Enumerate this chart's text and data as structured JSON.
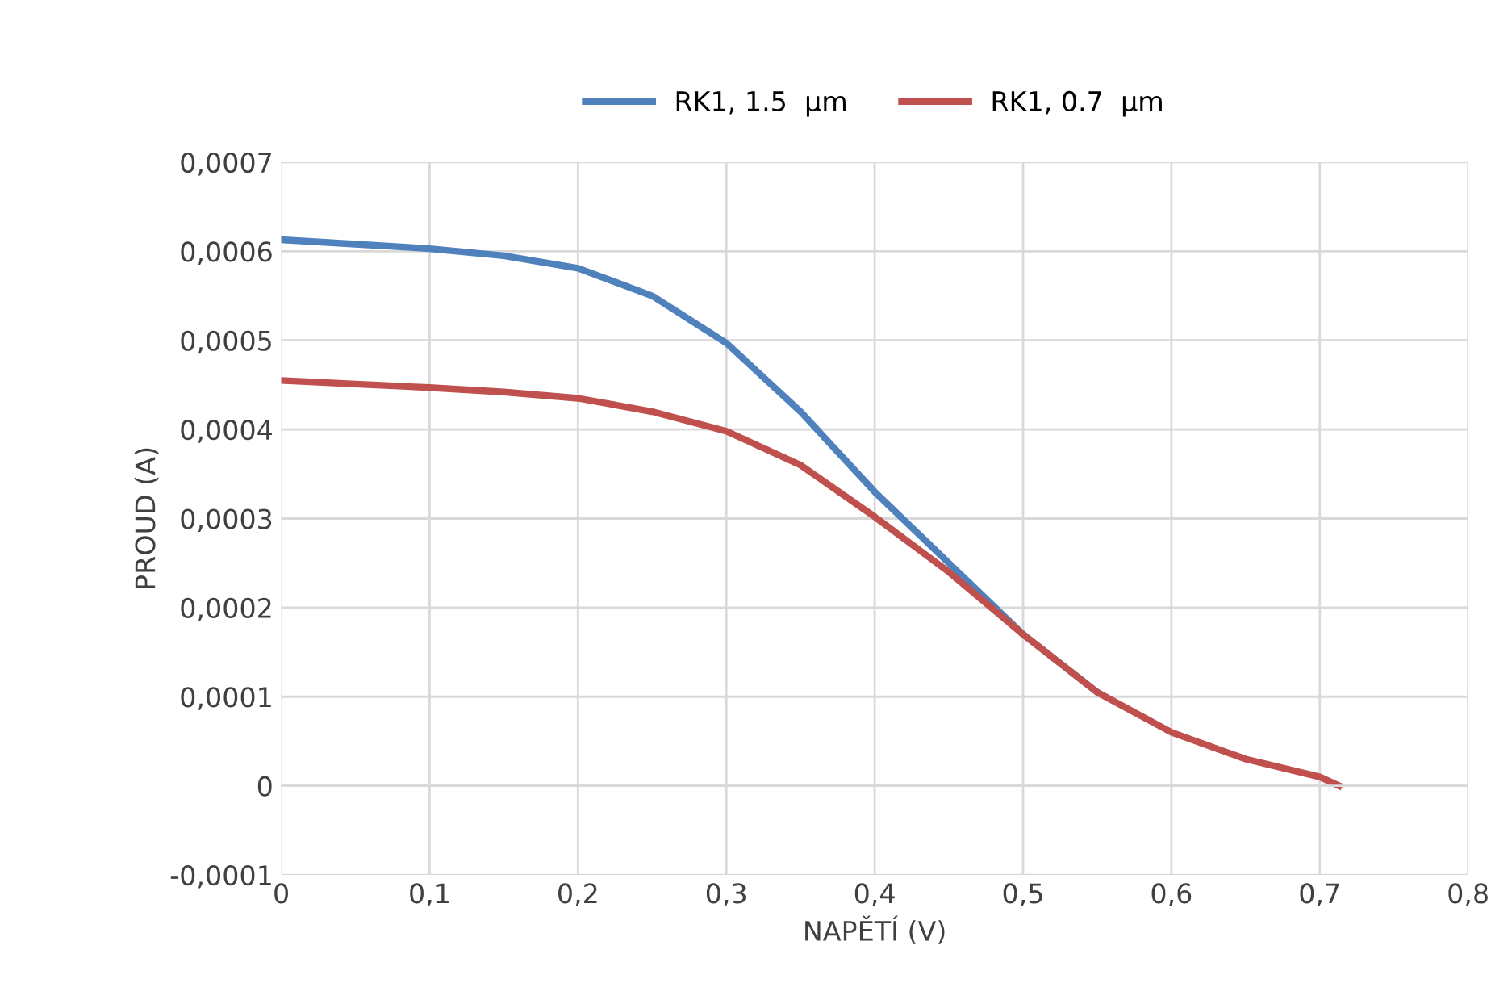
{
  "chart_data": {
    "type": "line",
    "xlabel": "NAPĚTÍ (V)",
    "ylabel": "PROUD (A)",
    "xlim": [
      0,
      0.8
    ],
    "ylim": [
      -0.0001,
      0.0007
    ],
    "xticks": [
      0,
      {
        "value": 0.1,
        "label": "0,1"
      },
      {
        "value": 0.2,
        "label": "0,2"
      },
      {
        "value": 0.3,
        "label": "0,3"
      },
      {
        "value": 0.4,
        "label": "0,4"
      },
      {
        "value": 0.5,
        "label": "0,5"
      },
      {
        "value": 0.6,
        "label": "0,6"
      },
      {
        "value": 0.7,
        "label": "0,7"
      },
      {
        "value": 0.8,
        "label": "0,8"
      }
    ],
    "yticks": [
      {
        "value": -0.0001,
        "label": "-0,0001"
      },
      0,
      {
        "value": 0.0001,
        "label": "0,0001"
      },
      {
        "value": 0.0002,
        "label": "0,0002"
      },
      {
        "value": 0.0003,
        "label": "0,0003"
      },
      {
        "value": 0.0004,
        "label": "0,0004"
      },
      {
        "value": 0.0005,
        "label": "0,0005"
      },
      {
        "value": 0.0006,
        "label": "0,0006"
      },
      {
        "value": 0.0007,
        "label": "0,0007"
      }
    ],
    "grid": true,
    "legend": "top",
    "marker": "none",
    "line_style": "solid",
    "x": [
      0,
      0.05,
      0.1,
      0.15,
      0.2,
      0.25,
      0.3,
      0.35,
      0.4,
      0.45,
      0.5,
      0.55,
      0.6,
      0.65,
      0.7,
      0.713
    ],
    "series": [
      {
        "name": "RK1, 1.5  µm",
        "color": "#4f81bd",
        "values": [
          0.000613,
          0.000608,
          0.000603,
          0.000595,
          0.000581,
          0.00055,
          0.000497,
          0.00042,
          0.00033,
          0.00025,
          0.00017,
          0.000105,
          null,
          null,
          null,
          null
        ]
      },
      {
        "name": "RK1, 0.7  µm",
        "color": "#c0504d",
        "values": [
          0.000455,
          0.000451,
          0.000447,
          0.000442,
          0.000435,
          0.00042,
          0.000398,
          0.00036,
          0.000302,
          0.00024,
          0.00017,
          0.000105,
          6e-05,
          3e-05,
          1e-05,
          0
        ]
      }
    ]
  }
}
